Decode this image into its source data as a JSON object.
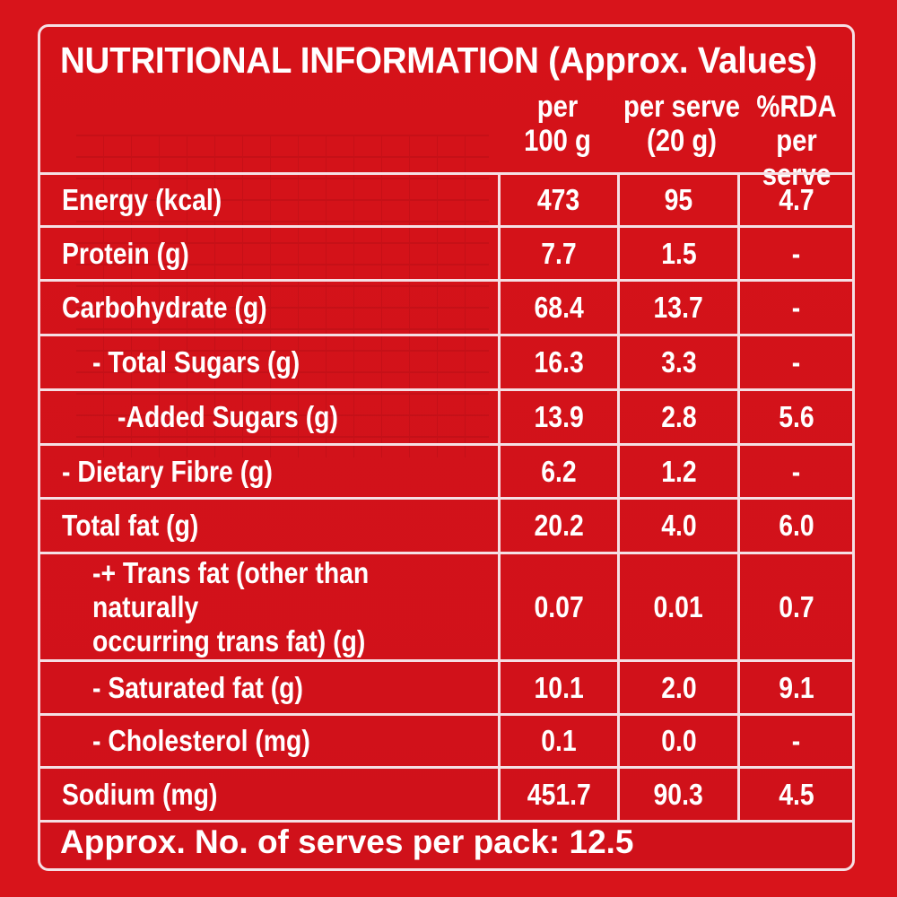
{
  "title": "NUTRITIONAL INFORMATION (Approx. Values)",
  "columns": {
    "per100": "per\n100 g",
    "perServe": "per serve\n(20 g)",
    "rda": "%RDA\nper serve"
  },
  "rows": [
    {
      "label": "Energy (kcal)",
      "per100": "473",
      "perServe": "95",
      "rda": "4.7"
    },
    {
      "label": "Protein (g)",
      "per100": "7.7",
      "perServe": "1.5",
      "rda": "-"
    },
    {
      "label": "Carbohydrate (g)",
      "per100": "68.4",
      "perServe": "13.7",
      "rda": "-"
    },
    {
      "label": "- Total Sugars (g)",
      "per100": "16.3",
      "perServe": "3.3",
      "rda": "-"
    },
    {
      "label": "-Added Sugars (g)",
      "per100": "13.9",
      "perServe": "2.8",
      "rda": "5.6"
    },
    {
      "label": "- Dietary Fibre (g)",
      "per100": "6.2",
      "perServe": "1.2",
      "rda": "-"
    },
    {
      "label": "Total fat (g)",
      "per100": "20.2",
      "perServe": "4.0",
      "rda": "6.0"
    },
    {
      "label": "-+ Trans fat (other than naturally\noccurring trans fat) (g)",
      "per100": "0.07",
      "perServe": "0.01",
      "rda": "0.7"
    },
    {
      "label": "- Saturated fat (g)",
      "per100": "10.1",
      "perServe": "2.0",
      "rda": "9.1"
    },
    {
      "label": "- Cholesterol (mg)",
      "per100": "0.1",
      "perServe": "0.0",
      "rda": "-"
    },
    {
      "label": "Sodium (mg)",
      "per100": "451.7",
      "perServe": "90.3",
      "rda": "4.5"
    }
  ],
  "footer": "Approx. No. of serves per pack: 12.5",
  "colors": {
    "background": "#d8141b",
    "text": "#ffffff",
    "rule": "#f5dfe4"
  }
}
